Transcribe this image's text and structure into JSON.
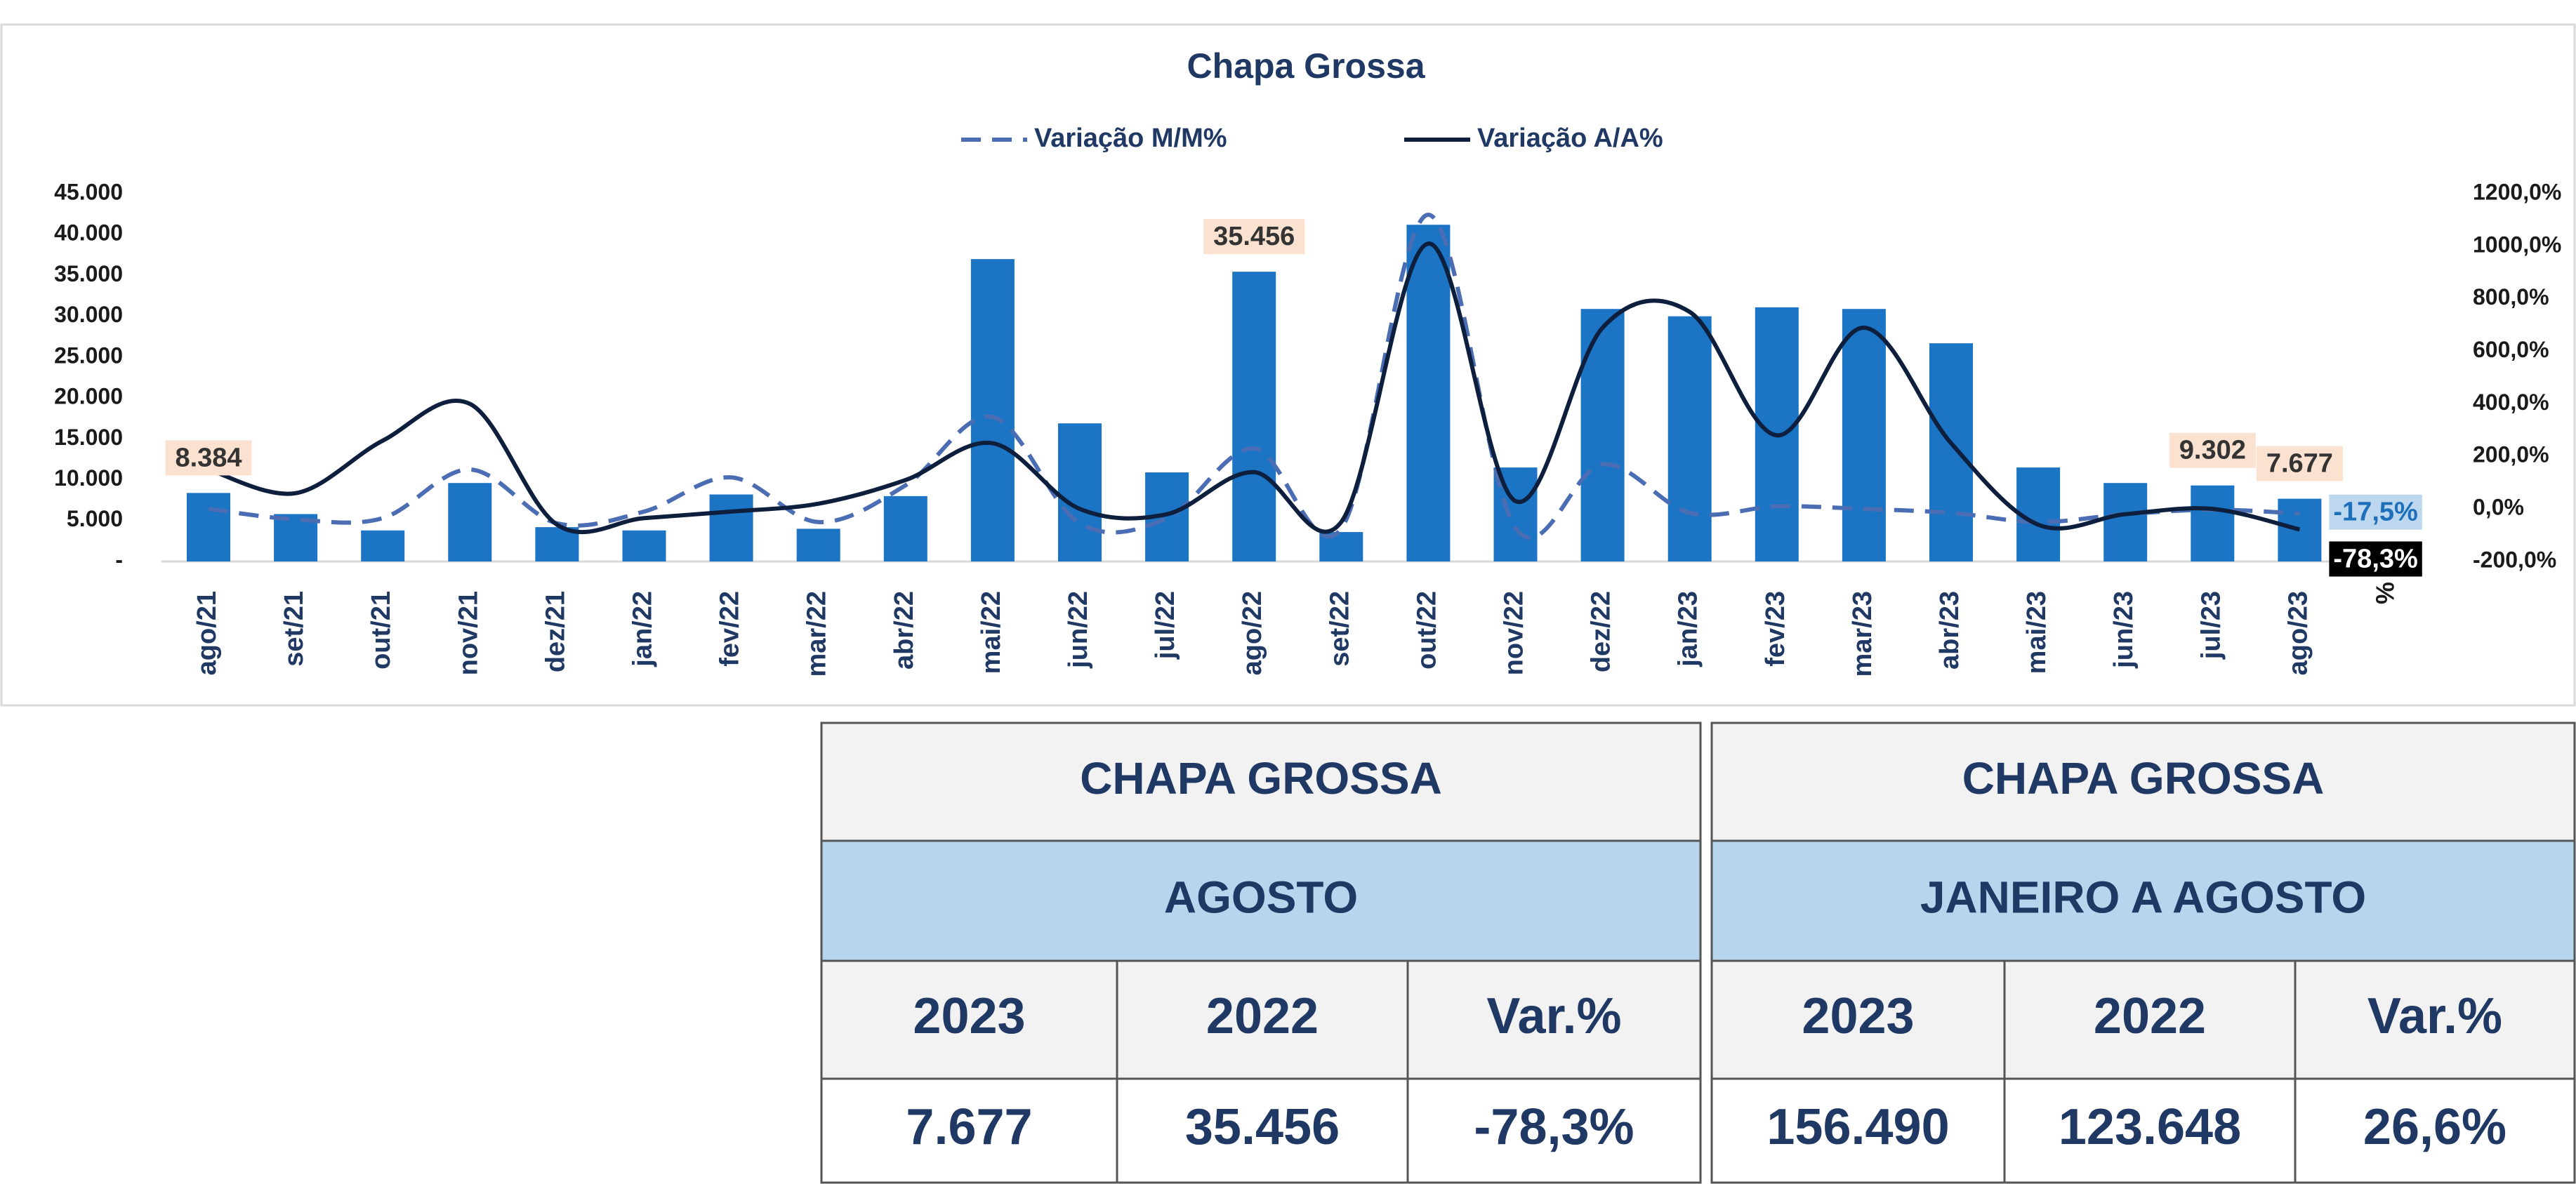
{
  "chart_data": {
    "type": "bar",
    "title": "Chapa Grossa",
    "categories": [
      "ago/21",
      "set/21",
      "out/21",
      "nov/21",
      "dez/21",
      "jan/22",
      "fev/22",
      "mar/22",
      "abr/22",
      "mai/22",
      "jun/22",
      "jul/22",
      "ago/22",
      "set/22",
      "out/22",
      "nov/22",
      "dez/22",
      "jan/23",
      "fev/23",
      "mar/23",
      "abr/23",
      "mai/23",
      "jun/23",
      "jul/23",
      "ago/23"
    ],
    "values": [
      8384,
      5800,
      3800,
      9600,
      4200,
      3800,
      8200,
      4000,
      8000,
      37000,
      16900,
      10900,
      35456,
      3600,
      41200,
      11500,
      30900,
      30000,
      31100,
      30900,
      26700,
      11500,
      9600,
      9302,
      7677
    ],
    "value_labels": [
      "8.384",
      null,
      null,
      null,
      null,
      null,
      null,
      null,
      null,
      null,
      null,
      null,
      "35.456",
      null,
      null,
      null,
      null,
      null,
      null,
      null,
      null,
      null,
      null,
      "9.302",
      "7.677"
    ],
    "color": "#1c74c4",
    "series": [
      {
        "name": "Variação M/M%",
        "color": "#4a6db3",
        "style": "dashed",
        "axis": "y2",
        "values": [
          0,
          -40,
          -35,
          150,
          -55,
          -10,
          120,
          -50,
          90,
          350,
          -55,
          -35,
          230,
          -75,
          1120,
          -72,
          170,
          -15,
          10,
          0,
          -15,
          -50,
          -20,
          -3,
          -17.5
        ],
        "value_labels": [
          null,
          null,
          null,
          null,
          null,
          null,
          null,
          null,
          null,
          null,
          null,
          null,
          null,
          null,
          null,
          null,
          null,
          null,
          null,
          null,
          null,
          null,
          null,
          null,
          "-17,5%"
        ]
      },
      {
        "name": "Variação A/A%",
        "color": "#0d1f3c",
        "style": "solid",
        "axis": "y2",
        "values": [
          150,
          60,
          260,
          400,
          -60,
          -35,
          -10,
          20,
          110,
          250,
          0,
          -20,
          140,
          -50,
          1010,
          30,
          690,
          750,
          280,
          690,
          250,
          -60,
          -20,
          0,
          -78.3
        ],
        "value_labels": [
          null,
          null,
          null,
          null,
          null,
          null,
          null,
          null,
          null,
          null,
          null,
          null,
          null,
          null,
          null,
          null,
          null,
          null,
          null,
          null,
          null,
          null,
          null,
          null,
          "-78,3%"
        ]
      }
    ],
    "ylim": [
      0,
      45000
    ],
    "yticks": [
      {
        "value": 0,
        "label": "-"
      },
      {
        "value": 5000,
        "label": "5.000"
      },
      {
        "value": 10000,
        "label": "10.000"
      },
      {
        "value": 15000,
        "label": "15.000"
      },
      {
        "value": 20000,
        "label": "20.000"
      },
      {
        "value": 25000,
        "label": "25.000"
      },
      {
        "value": 30000,
        "label": "30.000"
      },
      {
        "value": 35000,
        "label": "35.000"
      },
      {
        "value": 40000,
        "label": "40.000"
      },
      {
        "value": 45000,
        "label": "45.000"
      }
    ],
    "y2lim": [
      -200,
      1200
    ],
    "y2ticks": [
      {
        "value": -200,
        "label": "-200,0%"
      },
      {
        "value": 0,
        "label": "0,0%"
      },
      {
        "value": 200,
        "label": "200,0%"
      },
      {
        "value": 400,
        "label": "400,0%"
      },
      {
        "value": 600,
        "label": "600,0%"
      },
      {
        "value": 800,
        "label": "800,0%"
      },
      {
        "value": 1000,
        "label": "1000,0%"
      },
      {
        "value": 1200,
        "label": "1200,0%"
      }
    ],
    "y2label": "%",
    "legend": "top",
    "grid": false
  },
  "tables": [
    {
      "title": "CHAPA GROSSA",
      "period": "AGOSTO",
      "headers": [
        "2023",
        "2022",
        "Var.%"
      ],
      "values": [
        "7.677",
        "35.456",
        "-78,3%"
      ]
    },
    {
      "title": "CHAPA GROSSA",
      "period": "JANEIRO A AGOSTO",
      "headers": [
        "2023",
        "2022",
        "Var.%"
      ],
      "values": [
        "156.490",
        "123.648",
        "26,6%"
      ]
    }
  ]
}
